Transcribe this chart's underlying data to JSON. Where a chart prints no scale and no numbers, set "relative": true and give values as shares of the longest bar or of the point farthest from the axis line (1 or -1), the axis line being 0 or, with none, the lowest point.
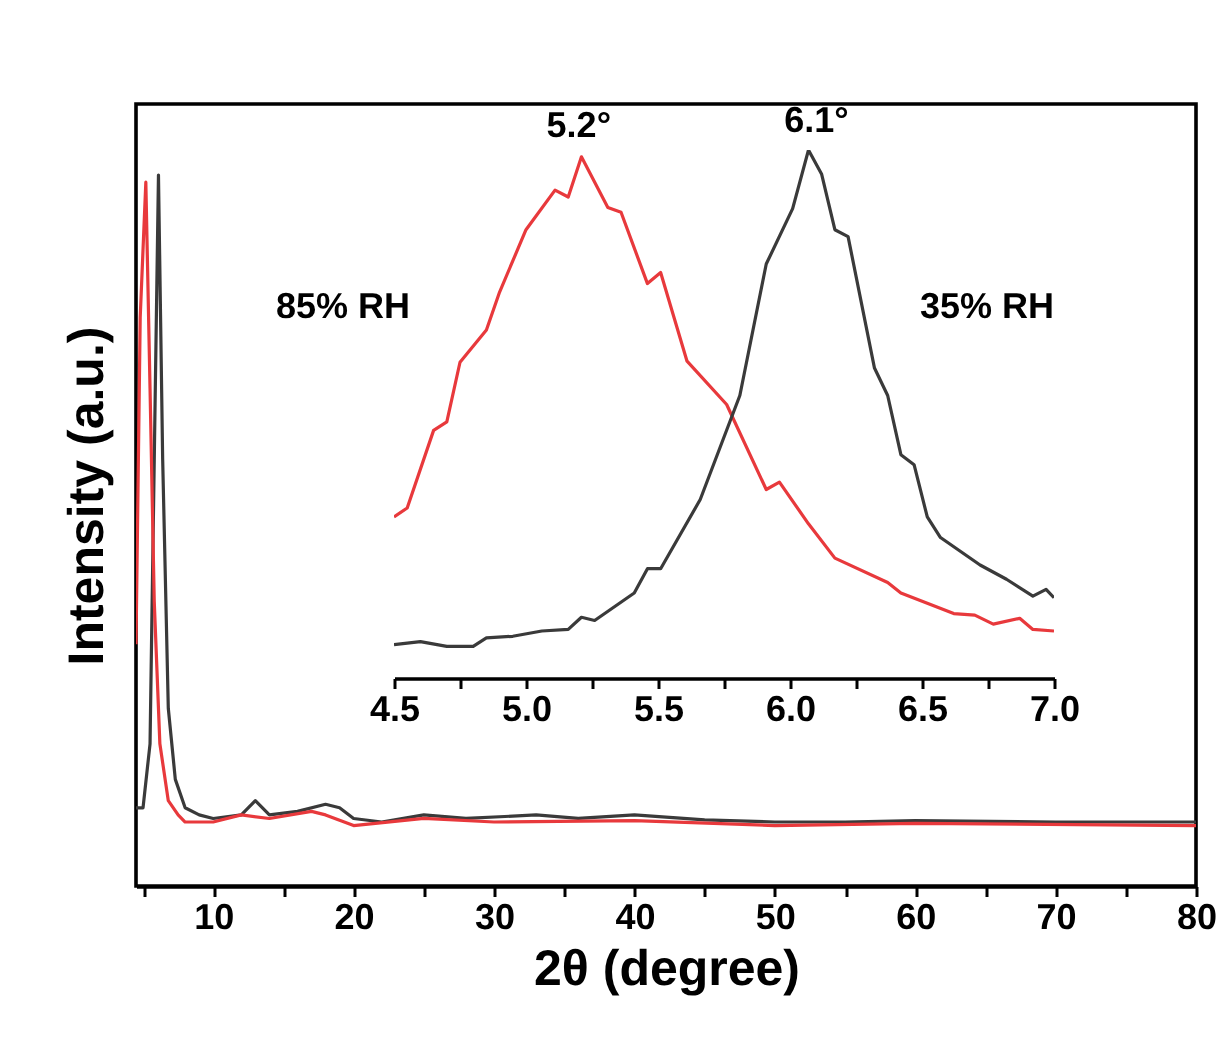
{
  "chart_data": [
    {
      "type": "line",
      "xlabel": "2θ (degree)",
      "ylabel": "Intensity (a.u.)",
      "xlim": [
        4.5,
        80
      ],
      "xticks": [
        {
          "value": 5,
          "label": null
        },
        10,
        {
          "value": 15,
          "label": null
        },
        20,
        {
          "value": 25,
          "label": null
        },
        30,
        {
          "value": 35,
          "label": null
        },
        40,
        {
          "value": 45,
          "label": null
        },
        50,
        {
          "value": 55,
          "label": null
        },
        60,
        {
          "value": 65,
          "label": null
        },
        70,
        {
          "value": 75,
          "label": null
        },
        80
      ],
      "relative": true,
      "legend": false,
      "tick_labels": "x",
      "series": [
        {
          "color": "#3a3a3a",
          "x": [
            4.5,
            5.0,
            5.5,
            5.8,
            6.1,
            6.4,
            6.8,
            7.3,
            8,
            9,
            10,
            12,
            13,
            14,
            16,
            18,
            19,
            20,
            22,
            25,
            28,
            33,
            36,
            40,
            45,
            50,
            55,
            60,
            70,
            80
          ],
          "values": [
            0.11,
            0.11,
            0.2,
            0.6,
            1.0,
            0.6,
            0.25,
            0.15,
            0.11,
            0.1,
            0.095,
            0.1,
            0.12,
            0.1,
            0.105,
            0.115,
            0.11,
            0.095,
            0.09,
            0.1,
            0.095,
            0.1,
            0.095,
            0.1,
            0.093,
            0.09,
            0.09,
            0.092,
            0.09,
            0.09
          ]
        },
        {
          "color": "#e8393c",
          "x": [
            4.5,
            4.8,
            5.2,
            5.5,
            5.8,
            6.2,
            6.8,
            7.5,
            8,
            10,
            12,
            14,
            17,
            18,
            20,
            25,
            30,
            40,
            50,
            60,
            80
          ],
          "values": [
            0.34,
            0.8,
            0.99,
            0.7,
            0.4,
            0.2,
            0.12,
            0.1,
            0.09,
            0.09,
            0.1,
            0.095,
            0.105,
            0.1,
            0.085,
            0.095,
            0.09,
            0.092,
            0.085,
            0.088,
            0.085
          ]
        }
      ]
    },
    {
      "type": "line",
      "xlim": [
        4.5,
        7.0
      ],
      "xticks": [
        4.5,
        {
          "value": 4.75,
          "label": null
        },
        {
          "value": 5,
          "label": "5.0"
        },
        {
          "value": 5.25,
          "label": null
        },
        5.5,
        {
          "value": 5.75,
          "label": null
        },
        {
          "value": 6,
          "label": "6.0"
        },
        {
          "value": 6.25,
          "label": null
        },
        6.5,
        {
          "value": 6.75,
          "label": null
        },
        {
          "value": 7,
          "label": "7.0"
        }
      ],
      "relative": true,
      "legend": false,
      "tick_labels": "x",
      "annotations": [
        {
          "text": "5.2°",
          "x": 5.2,
          "y": 0.99
        },
        {
          "text": "6.1°",
          "x": 6.1,
          "y": 1.0
        }
      ],
      "series": [
        {
          "name": "85% RH",
          "color": "#e8393c",
          "x": [
            4.5,
            4.55,
            4.65,
            4.7,
            4.75,
            4.85,
            4.9,
            5.0,
            5.11,
            5.16,
            5.21,
            5.31,
            5.36,
            5.46,
            5.51,
            5.61,
            5.76,
            5.91,
            5.96,
            6.07,
            6.17,
            6.37,
            6.42,
            6.62,
            6.7,
            6.77,
            6.87,
            6.92,
            7.0
          ],
          "values": [
            0.305,
            0.322,
            0.469,
            0.485,
            0.598,
            0.659,
            0.731,
            0.849,
            0.924,
            0.911,
            0.987,
            0.891,
            0.882,
            0.747,
            0.768,
            0.6,
            0.518,
            0.357,
            0.371,
            0.292,
            0.227,
            0.181,
            0.161,
            0.122,
            0.119,
            0.102,
            0.113,
            0.092,
            0.089
          ]
        },
        {
          "name": "35% RH",
          "color": "#3a3a3a",
          "x": [
            4.5,
            4.6,
            4.7,
            4.8,
            4.85,
            4.95,
            5.06,
            5.16,
            5.21,
            5.26,
            5.41,
            5.46,
            5.51,
            5.66,
            5.81,
            5.91,
            6.01,
            6.07,
            6.12,
            6.17,
            6.22,
            6.32,
            6.37,
            6.42,
            6.47,
            6.52,
            6.57,
            6.72,
            6.82,
            6.92,
            6.97,
            7.0
          ],
          "values": [
            0.063,
            0.069,
            0.06,
            0.06,
            0.076,
            0.079,
            0.089,
            0.092,
            0.115,
            0.109,
            0.161,
            0.207,
            0.207,
            0.338,
            0.535,
            0.784,
            0.889,
            1.0,
            0.954,
            0.849,
            0.836,
            0.587,
            0.535,
            0.423,
            0.404,
            0.305,
            0.266,
            0.214,
            0.187,
            0.155,
            0.168,
            0.152
          ]
        }
      ]
    }
  ]
}
